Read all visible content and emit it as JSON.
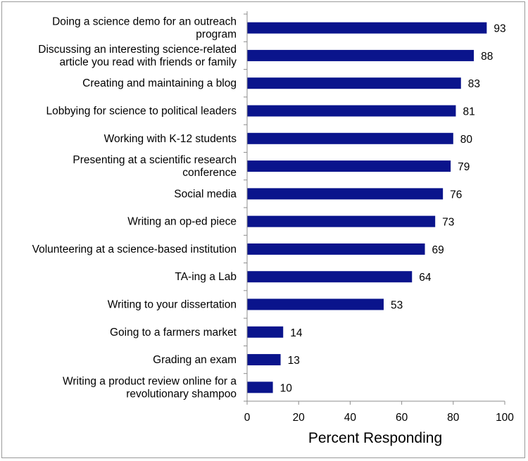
{
  "chart_data": {
    "type": "bar",
    "orientation": "horizontal",
    "categories": [
      [
        "Doing a science demo for an outreach",
        "program"
      ],
      [
        "Discussing an interesting science-related",
        "article you read with friends or family"
      ],
      [
        "Creating and maintaining a blog"
      ],
      [
        "Lobbying for science to political leaders"
      ],
      [
        "Working with K-12 students"
      ],
      [
        "Presenting at a scientific research",
        "conference"
      ],
      [
        "Social media"
      ],
      [
        "Writing an op-ed piece"
      ],
      [
        "Volunteering at a science-based institution"
      ],
      [
        "TA-ing a Lab"
      ],
      [
        "Writing to your dissertation"
      ],
      [
        "Going to a farmers market"
      ],
      [
        "Grading an exam"
      ],
      [
        "Writing a product review online for a",
        "revolutionary shampoo"
      ]
    ],
    "values": [
      93,
      88,
      83,
      81,
      80,
      79,
      76,
      73,
      69,
      64,
      53,
      14,
      13,
      10
    ],
    "xlabel": "Percent Responding",
    "xlim": [
      0,
      100
    ],
    "xticks": [
      0,
      20,
      40,
      60,
      80,
      100
    ],
    "bar_color": "#0a148c",
    "grid": false,
    "data_labels": true
  }
}
